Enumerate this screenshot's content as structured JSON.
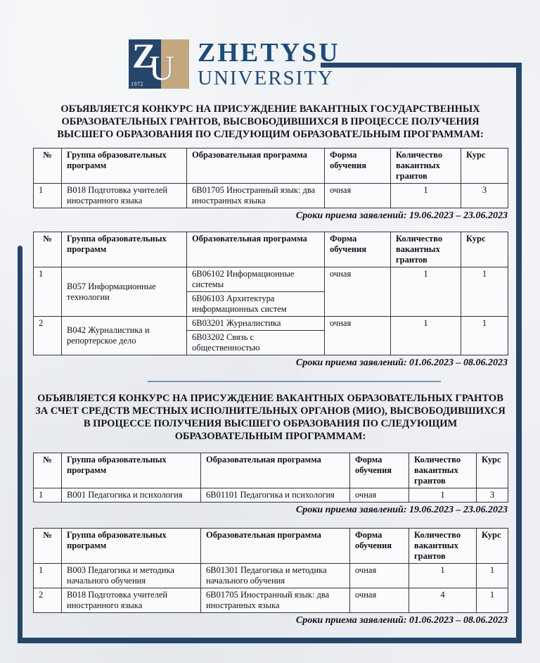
{
  "logo": {
    "monogram_z": "Z",
    "monogram_u": "U",
    "year": "1972",
    "title": "ZHETYSU",
    "subtitle": "UNIVERSITY"
  },
  "headings": {
    "first": "ОБЪЯВЛЯЕТСЯ КОНКУРС НА ПРИСУЖДЕНИЕ ВАКАНТНЫХ ГОСУДАРСТВЕННЫХ ОБРАЗОВАТЕЛЬНЫХ ГРАНТОВ, ВЫСВОБОДИВШИХСЯ В ПРОЦЕССЕ ПОЛУЧЕНИЯ ВЫСШЕГО ОБРАЗОВАНИЯ ПО СЛЕДУЮЩИМ ОБРАЗОВАТЕЛЬНЫМ ПРОГРАММАМ:",
    "second": "ОБЪЯВЛЯЕТСЯ КОНКУРС НА ПРИСУЖДЕНИЕ ВАКАНТНЫХ ОБРАЗОВАТЕЛЬНЫХ ГРАНТОВ ЗА СЧЕТ СРЕДСТВ МЕСТНЫХ ИСПОЛНИТЕЛЬНЫХ ОРГАНОВ (МИО), ВЫСВОБОДИВШИХСЯ В ПРОЦЕССЕ ПОЛУЧЕНИЯ ВЫСШЕГО ОБРАЗОВАНИЯ ПО СЛЕДУЮЩИМ ОБРАЗОВАТЕЛЬНЫМ ПРОГРАММАМ:"
  },
  "table_headers": {
    "num": "№",
    "group": "Группа образовательных программ",
    "program": "Образовательная программа",
    "form": "Форма обучения",
    "grants": "Количество вакантных грантов",
    "course": "Курс"
  },
  "tables": {
    "state_grants": {
      "rows": [
        {
          "num": "1",
          "group": "В018 Подготовка учителей иностранного языка",
          "program": "6В01705  Иностранный язык: два иностранных языка",
          "form": "очная",
          "grants": "1",
          "course": "3"
        }
      ],
      "deadline": "Сроки приема заявлений: 19.06.2023 – 23.06.2023"
    },
    "state_grants_2": {
      "rows": [
        {
          "num": "1",
          "group": "В057 Информационные технологии",
          "programs": [
            "6В06102 Информационные системы",
            "6В06103 Архитектура информационных систем"
          ],
          "form": "очная",
          "grants": "1",
          "course": "1"
        },
        {
          "num": "2",
          "group": "В042 Журналистика и репортерское дело",
          "programs": [
            "6В03201 Журналистика",
            "6В03202 Связь с общественностью"
          ],
          "form": "очная",
          "grants": "1",
          "course": "1"
        }
      ],
      "deadline": "Сроки приема заявлений: 01.06.2023 – 08.06.2023"
    },
    "mio_grants": {
      "rows": [
        {
          "num": "1",
          "group": "В001 Педагогика и психология",
          "program": "6В01101  Педагогика и психология",
          "form": "очная",
          "grants": "1",
          "course": "3"
        }
      ],
      "deadline": "Сроки приема заявлений: 19.06.2023 – 23.06.2023"
    },
    "mio_grants_2": {
      "rows": [
        {
          "num": "1",
          "group": "В003 Педагогика и методика начального обучения",
          "program": "6В01301 Педагогика и методика начального обучения",
          "form": "очная",
          "grants": "1",
          "course": "1"
        },
        {
          "num": "2",
          "group": "В018 Подготовка учителей иностранного языка",
          "program": "6В01705  Иностранный язык: два иностранных языка",
          "form": "очная",
          "grants": "4",
          "course": "1"
        }
      ],
      "deadline": "Сроки приема заявлений: 01.06.2023 – 08.06.2023"
    }
  },
  "colors": {
    "frame_navy": "#24466B",
    "emblem_navy": "#24466B",
    "emblem_tan": "#C4A67F",
    "logo_text_blue": "#1B4C7A",
    "divider_blue": "#7D95B0"
  }
}
